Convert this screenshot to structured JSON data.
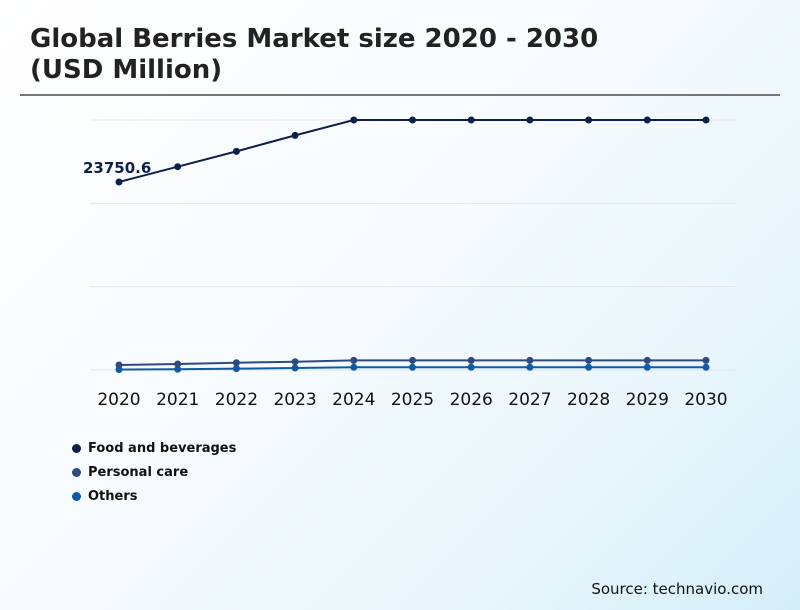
{
  "title_line1": "Global Berries Market size 2020 - 2030",
  "title_line2": "(USD Million)",
  "source": "Source: technavio.com",
  "chart_data": {
    "type": "line",
    "title": "Global Berries Market size 2020 - 2030 (USD Million)",
    "x": [
      "2020",
      "2021",
      "2022",
      "2023",
      "2024",
      "2025",
      "2026",
      "2027",
      "2028",
      "2029",
      "2030"
    ],
    "ylim": [
      0,
      31580
    ],
    "grid": true,
    "legend_position": "bottom-left",
    "annotations": [
      {
        "series": "Food and beverages",
        "x": "2020",
        "text": "23750.6"
      }
    ],
    "series": [
      {
        "name": "Food and beverages",
        "color": "#0d1f4a",
        "values": [
          23750.6,
          25680,
          27620,
          29640,
          31580,
          31580,
          31580,
          31580,
          31580,
          31580,
          31580
        ]
      },
      {
        "name": "Personal care",
        "color": "#2e4a7f",
        "values": [
          630,
          760,
          920,
          1050,
          1220,
          1220,
          1220,
          1220,
          1220,
          1220,
          1220
        ]
      },
      {
        "name": "Others",
        "color": "#0f5aa6",
        "values": [
          60,
          90,
          170,
          250,
          340,
          340,
          340,
          340,
          340,
          340,
          340
        ]
      }
    ]
  }
}
